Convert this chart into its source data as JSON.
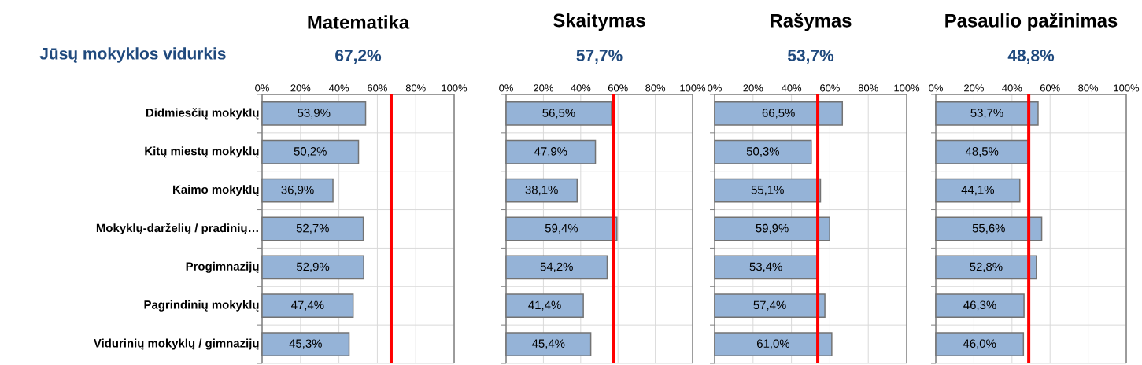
{
  "chart_data": [
    {
      "type": "bar",
      "orientation": "horizontal",
      "title": "Matematika",
      "annotations": [
        "Jūsų mokyklos vidurkis"
      ],
      "categories": [
        "Didmiesčių mokyklų",
        "Kitų miestų mokyklų",
        "Kaimo mokyklų",
        "Mokyklų-darželių / pradinių…",
        "Progimnazijų",
        "Pagrindinių mokyklų",
        "Vidurinių mokyklų / gimnazijų"
      ],
      "values": [
        53.9,
        50.2,
        36.9,
        52.7,
        52.9,
        47.4,
        45.3
      ],
      "value_labels": [
        "53,9%",
        "50,2%",
        "36,9%",
        "52,7%",
        "52,9%",
        "47,4%",
        "45,3%"
      ],
      "color": "#95b3d7",
      "xlim": [
        0,
        100
      ],
      "xticks": [
        {
          "value": 0,
          "label": "0%"
        },
        {
          "value": 20,
          "label": "20%"
        },
        {
          "value": 40,
          "label": "40%"
        },
        {
          "value": 60,
          "label": "60%"
        },
        {
          "value": 80,
          "label": "80%"
        },
        {
          "value": 100,
          "label": "100%"
        }
      ],
      "grid": true,
      "ref_lines": [
        {
          "axis": "x",
          "value": 67.2,
          "label": "67,2%",
          "color": "#ff0000"
        }
      ]
    },
    {
      "type": "bar",
      "orientation": "horizontal",
      "title": "Skaitymas",
      "categories": [
        null,
        null,
        null,
        null,
        null,
        null,
        null
      ],
      "values": [
        56.5,
        47.9,
        38.1,
        59.4,
        54.2,
        41.4,
        45.4
      ],
      "value_labels": [
        "56,5%",
        "47,9%",
        "38,1%",
        "59,4%",
        "54,2%",
        "41,4%",
        "45,4%"
      ],
      "color": "#95b3d7",
      "xlim": [
        0,
        100
      ],
      "xticks": [
        {
          "value": 0,
          "label": "0%"
        },
        {
          "value": 20,
          "label": "20%"
        },
        {
          "value": 40,
          "label": "40%"
        },
        {
          "value": 60,
          "label": "60%"
        },
        {
          "value": 80,
          "label": "80%"
        },
        {
          "value": 100,
          "label": "100%"
        }
      ],
      "grid": true,
      "ref_lines": [
        {
          "axis": "x",
          "value": 57.7,
          "label": "57,7%",
          "color": "#ff0000"
        }
      ]
    },
    {
      "type": "bar",
      "orientation": "horizontal",
      "title": "Rašymas",
      "categories": [
        null,
        null,
        null,
        null,
        null,
        null,
        null
      ],
      "values": [
        66.5,
        50.3,
        55.1,
        59.9,
        53.4,
        57.4,
        61.0
      ],
      "value_labels": [
        "66,5%",
        "50,3%",
        "55,1%",
        "59,9%",
        "53,4%",
        "57,4%",
        "61,0%"
      ],
      "color": "#95b3d7",
      "xlim": [
        0,
        100
      ],
      "xticks": [
        {
          "value": 0,
          "label": "0%"
        },
        {
          "value": 20,
          "label": "20%"
        },
        {
          "value": 40,
          "label": "40%"
        },
        {
          "value": 60,
          "label": "60%"
        },
        {
          "value": 80,
          "label": "80%"
        },
        {
          "value": 100,
          "label": "100%"
        }
      ],
      "grid": true,
      "ref_lines": [
        {
          "axis": "x",
          "value": 53.7,
          "label": "53,7%",
          "color": "#ff0000"
        }
      ]
    },
    {
      "type": "bar",
      "orientation": "horizontal",
      "title": "Pasaulio pažinimas",
      "categories": [
        null,
        null,
        null,
        null,
        null,
        null,
        null
      ],
      "values": [
        53.7,
        48.5,
        44.1,
        55.6,
        52.8,
        46.3,
        46.0
      ],
      "value_labels": [
        "53,7%",
        "48,5%",
        "44,1%",
        "55,6%",
        "52,8%",
        "46,3%",
        "46,0%"
      ],
      "color": "#95b3d7",
      "xlim": [
        0,
        100
      ],
      "xticks": [
        {
          "value": 0,
          "label": "0%"
        },
        {
          "value": 20,
          "label": "20%"
        },
        {
          "value": 40,
          "label": "40%"
        },
        {
          "value": 60,
          "label": "60%"
        },
        {
          "value": 80,
          "label": "80%"
        },
        {
          "value": 100,
          "label": "100%"
        }
      ],
      "grid": true,
      "ref_lines": [
        {
          "axis": "x",
          "value": 48.8,
          "label": "48,8%",
          "color": "#ff0000"
        }
      ]
    }
  ]
}
